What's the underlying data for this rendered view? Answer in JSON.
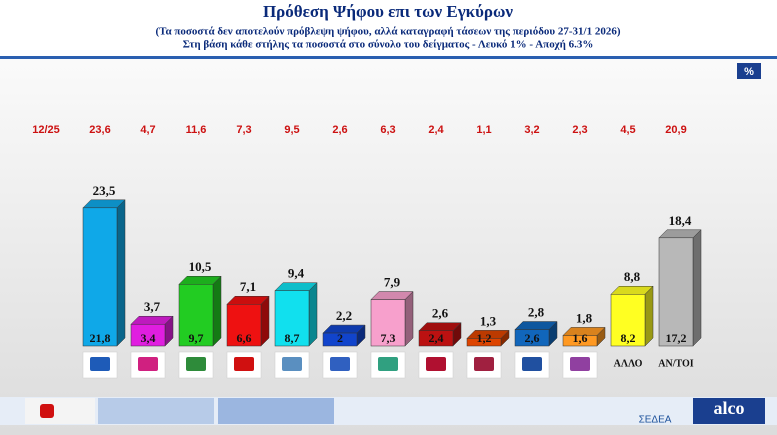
{
  "chart_data": {
    "type": "bar3d",
    "title": "Πρόθεση Ψήφου επι των Εγκύρων",
    "subtitle": [
      "(Τα ποσοστά δεν αποτελούν πρόβλεψη ψήφου, αλλά καταγραφή τάσεων της περιόδου  27-31/1 2026)",
      "Στη βάση κάθε στήλης τα ποσοστά στο σύνολο του δείγματος - Λευκό 1% - Αποχή 6.3%"
    ],
    "unit": "%",
    "categories": [
      null,
      null,
      null,
      null,
      null,
      null,
      null,
      null,
      null,
      null,
      null,
      "ΑΛΛΟ",
      "ΑΝ/ΤΟΙ"
    ],
    "colors": [
      "#0fa8e8",
      "#e01ee0",
      "#22cc22",
      "#ee1111",
      "#11e0ee",
      "#1144cc",
      "#f7a0cc",
      "#bb1111",
      "#dd4400",
      "#1166bb",
      "#ff9922",
      "#ffff22",
      "#b8b8b8"
    ],
    "logo_colors": [
      "#1e5bb8",
      "#d02080",
      "#2e8b3a",
      "#d01010",
      "#5a8fc0",
      "#3060c0",
      "#30a080",
      "#b01030",
      "#a02040",
      "#2050a0",
      "#9040a0",
      null,
      null
    ],
    "values": [
      23.5,
      3.7,
      10.5,
      7.1,
      9.4,
      2.2,
      7.9,
      2.6,
      1.3,
      2.8,
      1.8,
      8.8,
      18.4
    ],
    "value_labels": [
      "23,5",
      "3,7",
      "10,5",
      "7,1",
      "9,4",
      "2,2",
      "7,9",
      "2,6",
      "1,3",
      "2,8",
      "1,8",
      "8,8",
      "18,4"
    ],
    "base_values": [
      21.8,
      3.4,
      9.7,
      6.6,
      8.7,
      2,
      7.3,
      2.4,
      1.2,
      2.6,
      1.6,
      8.2,
      17.2
    ],
    "base_value_labels": [
      "21,8",
      "3,4",
      "9,7",
      "6,6",
      "8,7",
      "2",
      "7,3",
      "2,4",
      "1,2",
      "2,6",
      "1,6",
      "8,2",
      "17,2"
    ],
    "prev_label": "12/25",
    "prev_values": [
      23.6,
      4.7,
      11.6,
      7.3,
      9.5,
      2.6,
      6.3,
      2.4,
      1.1,
      3.2,
      2.3,
      4.5,
      20.9
    ],
    "prev_value_labels": [
      "23,6",
      "4,7",
      "11,6",
      "7,3",
      "9,5",
      "2,6",
      "6,3",
      "2,4",
      "1,1",
      "3,2",
      "2,3",
      "4,5",
      "20,9"
    ],
    "ylim": [
      0,
      25
    ],
    "footer": [
      "ΣΕΔΕΑ",
      "alco"
    ]
  }
}
